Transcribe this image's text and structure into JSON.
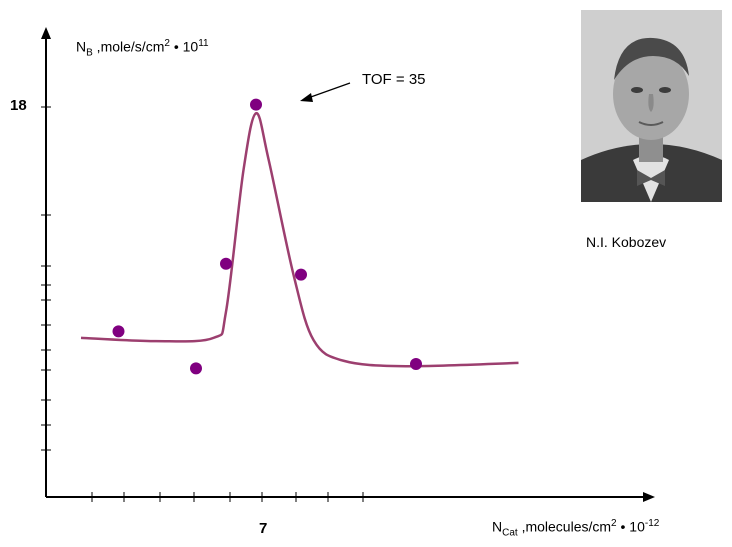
{
  "chart_data": {
    "type": "scatter",
    "ylabel": {
      "main": "N",
      "sub": "B",
      "rest": " ,mole/s/cm",
      "exp": "2",
      "mult": " • 10",
      "power": "11"
    },
    "xlabel": {
      "main": "N",
      "sub": "Cat",
      "rest": " ,molecules/cm",
      "exp": "2",
      "mult": " • 10",
      "power": "-12"
    },
    "y_tick_label": "18",
    "x_tick_label": "7",
    "annotation": "TOF = 35",
    "points": [
      {
        "x": 1.5,
        "y": 7.6
      },
      {
        "x": 4.6,
        "y": 5.9
      },
      {
        "x": 5.8,
        "y": 10.7
      },
      {
        "x": 7.0,
        "y": 18.0
      },
      {
        "x": 8.8,
        "y": 10.2
      },
      {
        "x": 13.4,
        "y": 6.1
      }
    ],
    "curve": [
      {
        "x": 0.0,
        "y": 7.3
      },
      {
        "x": 3.0,
        "y": 7.15
      },
      {
        "x": 5.3,
        "y": 7.3
      },
      {
        "x": 5.8,
        "y": 8.5
      },
      {
        "x": 6.5,
        "y": 15.0
      },
      {
        "x": 7.0,
        "y": 17.6
      },
      {
        "x": 7.5,
        "y": 15.5
      },
      {
        "x": 8.5,
        "y": 10.2
      },
      {
        "x": 9.3,
        "y": 7.2
      },
      {
        "x": 10.5,
        "y": 6.25
      },
      {
        "x": 13.0,
        "y": 6.0
      },
      {
        "x": 17.5,
        "y": 6.15
      }
    ],
    "xlim": [
      -1.4,
      20.5
    ],
    "ylim": [
      0,
      21.7
    ],
    "colors": {
      "point": "#800080",
      "curve": "#9c3f6f",
      "axis": "#000000"
    }
  },
  "photo": {
    "caption": "N.I. Kobozev"
  }
}
